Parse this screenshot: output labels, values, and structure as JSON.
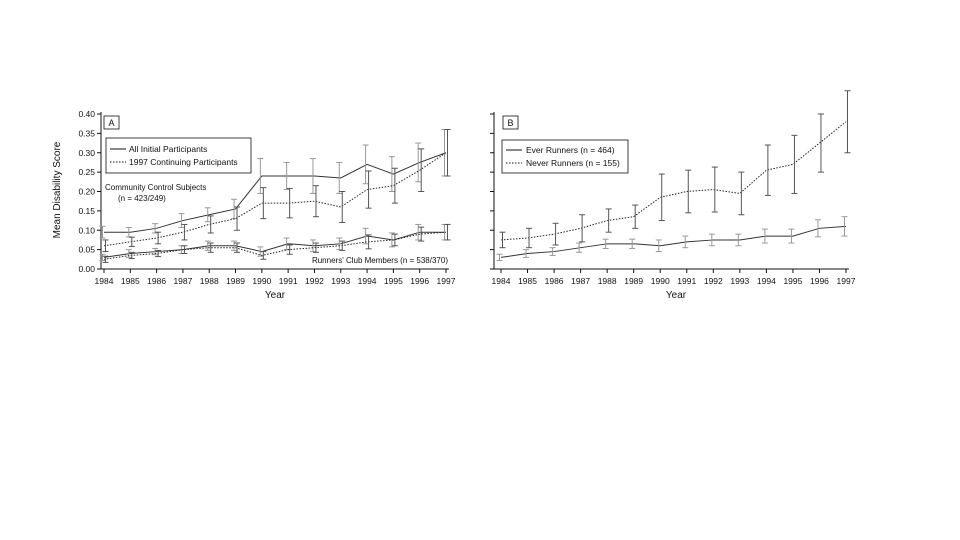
{
  "chart_data": [
    {
      "type": "line",
      "panel_label": "A",
      "xlabel": "Year",
      "ylabel": "Mean Disability Score",
      "ylim": [
        0,
        0.4
      ],
      "yticks": [
        "0.00",
        "0.05",
        "0.10",
        "0.15",
        "0.20",
        "0.25",
        "0.30",
        "0.35",
        "0.40"
      ],
      "x": [
        "1984",
        "1985",
        "1986",
        "1987",
        "1988",
        "1989",
        "1990",
        "1991",
        "1992",
        "1993",
        "1994",
        "1995",
        "1996",
        "1997"
      ],
      "legend": {
        "placement": "top-left",
        "entries": [
          {
            "label": "All Initial Participants",
            "style": "solid"
          },
          {
            "label": "1997 Continuing Participants",
            "style": "dotted"
          }
        ]
      },
      "annotations": {
        "group_top_line1": "Community Control Subjects",
        "group_top_line2": "(n = 423/249)",
        "group_bottom": "Runners' Club Members (n = 538/370)"
      },
      "series": [
        {
          "group": "control",
          "style": "solid",
          "values": [
            0.095,
            0.095,
            0.105,
            0.125,
            0.14,
            0.155,
            0.24,
            0.24,
            0.24,
            0.235,
            0.27,
            0.245,
            0.275,
            0.3
          ],
          "err": [
            0.015,
            0.012,
            0.012,
            0.018,
            0.018,
            0.025,
            0.045,
            0.035,
            0.045,
            0.04,
            0.05,
            0.045,
            0.05,
            0.06
          ]
        },
        {
          "group": "control",
          "style": "dotted",
          "values": [
            0.06,
            0.07,
            0.08,
            0.095,
            0.115,
            0.13,
            0.17,
            0.17,
            0.175,
            0.16,
            0.205,
            0.215,
            0.255,
            0.3
          ],
          "err": [
            0.015,
            0.012,
            0.015,
            0.02,
            0.022,
            0.03,
            0.04,
            0.038,
            0.04,
            0.04,
            0.048,
            0.045,
            0.055,
            0.06
          ]
        },
        {
          "group": "runners",
          "style": "solid",
          "values": [
            0.03,
            0.04,
            0.045,
            0.05,
            0.06,
            0.06,
            0.045,
            0.065,
            0.06,
            0.065,
            0.085,
            0.075,
            0.095,
            0.095
          ],
          "err": [
            0.008,
            0.01,
            0.008,
            0.01,
            0.012,
            0.012,
            0.012,
            0.015,
            0.015,
            0.015,
            0.02,
            0.018,
            0.02,
            0.02
          ]
        },
        {
          "group": "runners",
          "style": "dotted",
          "values": [
            0.025,
            0.035,
            0.04,
            0.05,
            0.055,
            0.055,
            0.035,
            0.05,
            0.055,
            0.06,
            0.07,
            0.075,
            0.09,
            0.095
          ],
          "err": [
            0.008,
            0.008,
            0.008,
            0.01,
            0.012,
            0.012,
            0.01,
            0.012,
            0.012,
            0.012,
            0.018,
            0.015,
            0.018,
            0.02
          ]
        }
      ]
    },
    {
      "type": "line",
      "panel_label": "B",
      "xlabel": "Year",
      "ylabel": "",
      "ylim": [
        0,
        0.4
      ],
      "x": [
        "1984",
        "1985",
        "1986",
        "1987",
        "1988",
        "1989",
        "1990",
        "1991",
        "1992",
        "1993",
        "1994",
        "1995",
        "1996",
        "1997"
      ],
      "legend": {
        "placement": "top-left",
        "entries": [
          {
            "label": "Ever Runners (n = 464)",
            "style": "solid"
          },
          {
            "label": "Never Runners (n = 155)",
            "style": "dotted"
          }
        ]
      },
      "series": [
        {
          "name": "Ever Runners (n = 464)",
          "style": "solid",
          "values": [
            0.03,
            0.04,
            0.045,
            0.055,
            0.065,
            0.065,
            0.06,
            0.07,
            0.075,
            0.075,
            0.085,
            0.085,
            0.105,
            0.11
          ],
          "err": [
            0.008,
            0.01,
            0.01,
            0.012,
            0.012,
            0.012,
            0.015,
            0.015,
            0.015,
            0.015,
            0.018,
            0.018,
            0.022,
            0.025
          ]
        },
        {
          "name": "Never Runners (n = 155)",
          "style": "dotted",
          "values": [
            0.075,
            0.08,
            0.09,
            0.105,
            0.125,
            0.135,
            0.185,
            0.2,
            0.205,
            0.195,
            0.255,
            0.27,
            0.325,
            0.38
          ],
          "err": [
            0.02,
            0.025,
            0.028,
            0.035,
            0.03,
            0.03,
            0.06,
            0.055,
            0.058,
            0.055,
            0.065,
            0.075,
            0.075,
            0.08
          ]
        }
      ]
    }
  ]
}
